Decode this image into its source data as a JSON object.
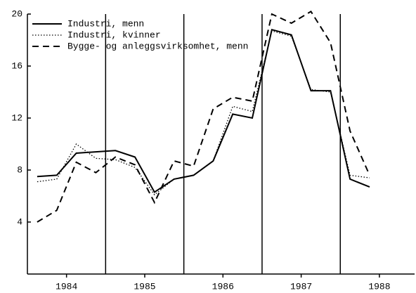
{
  "chart_data": {
    "type": "line",
    "x": [
      1984.125,
      1984.375,
      1984.625,
      1984.875,
      1985.125,
      1985.375,
      1985.625,
      1985.875,
      1986.125,
      1986.375,
      1986.625,
      1986.875,
      1987.125,
      1987.375,
      1987.625,
      1987.875,
      1988.125,
      1988.375
    ],
    "series": [
      {
        "name": "Industri, menn",
        "color": "#000000",
        "dash": "solid",
        "values": [
          7.5,
          7.6,
          9.3,
          9.4,
          9.5,
          9.0,
          6.3,
          7.3,
          7.6,
          8.7,
          12.3,
          12.0,
          18.8,
          18.4,
          14.1,
          14.1,
          7.3,
          6.7
        ]
      },
      {
        "name": "Industri, kvinner",
        "color": "#000000",
        "dash": "dotted",
        "values": [
          7.1,
          7.3,
          10.0,
          8.9,
          8.8,
          8.2,
          6.1,
          7.3,
          7.6,
          8.7,
          12.9,
          12.5,
          18.7,
          18.3,
          14.2,
          14.0,
          7.6,
          7.4
        ]
      },
      {
        "name": "Bygge- og anleggsvirksomhet, menn",
        "color": "#000000",
        "dash": "dashed",
        "values": [
          4.0,
          4.9,
          8.6,
          7.8,
          9.0,
          8.4,
          5.5,
          8.7,
          8.3,
          12.7,
          13.6,
          13.3,
          20.0,
          19.3,
          20.2,
          17.8,
          11.0,
          7.6
        ]
      }
    ],
    "xlim": [
      1984,
      1988.95
    ],
    "xticks": [
      {
        "value": 1984.5,
        "label": "1984"
      },
      {
        "value": 1985.5,
        "label": "1985"
      },
      {
        "value": 1986.5,
        "label": "1986"
      },
      {
        "value": 1987.5,
        "label": "1987"
      },
      {
        "value": 1988.5,
        "label": "1988"
      }
    ],
    "vlines": [
      1985,
      1986,
      1987,
      1988
    ],
    "ylim": [
      0,
      20
    ],
    "yticks": [
      4,
      8,
      12,
      16,
      20
    ],
    "legend": "top-left"
  }
}
